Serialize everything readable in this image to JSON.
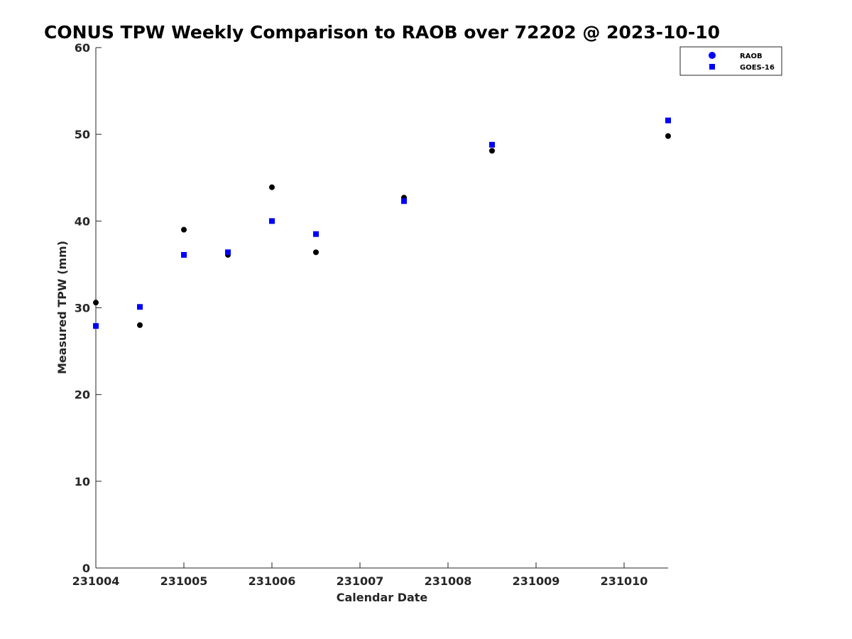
{
  "chart_data": {
    "type": "scatter",
    "title": "CONUS TPW Weekly Comparison to RAOB over 72202 @ 2023-10-10",
    "xlabel": "Calendar Date",
    "ylabel": "Measured TPW (mm)",
    "x_ticks": [
      "231004",
      "231005",
      "231006",
      "231007",
      "231008",
      "231009",
      "231010"
    ],
    "x_range": [
      "231004",
      "231010.5"
    ],
    "ylim": [
      0,
      60
    ],
    "y_ticks": [
      0,
      10,
      20,
      30,
      40,
      50,
      60
    ],
    "grid": false,
    "legend_position": "top-right",
    "series": [
      {
        "name": "RAOB",
        "marker": "circle",
        "color": "#000000",
        "points": [
          {
            "x": "231004.0",
            "y": 30.6
          },
          {
            "x": "231004.5",
            "y": 28.0
          },
          {
            "x": "231005.0",
            "y": 39.0
          },
          {
            "x": "231005.5",
            "y": 36.1
          },
          {
            "x": "231006.0",
            "y": 43.9
          },
          {
            "x": "231006.5",
            "y": 36.4
          },
          {
            "x": "231007.5",
            "y": 42.7
          },
          {
            "x": "231008.5",
            "y": 48.1
          },
          {
            "x": "231010.5",
            "y": 49.8
          }
        ]
      },
      {
        "name": "GOES-16",
        "marker": "square",
        "color": "#0000ff",
        "points": [
          {
            "x": "231004.0",
            "y": 27.9
          },
          {
            "x": "231004.5",
            "y": 30.1
          },
          {
            "x": "231005.0",
            "y": 36.1
          },
          {
            "x": "231005.5",
            "y": 36.4
          },
          {
            "x": "231006.0",
            "y": 40.0
          },
          {
            "x": "231006.5",
            "y": 38.5
          },
          {
            "x": "231007.5",
            "y": 42.3
          },
          {
            "x": "231008.5",
            "y": 48.8
          },
          {
            "x": "231010.5",
            "y": 51.6
          }
        ]
      }
    ],
    "legend_marker_colors": {
      "RAOB": "#0000ff",
      "GOES-16": "#0000ff"
    }
  }
}
